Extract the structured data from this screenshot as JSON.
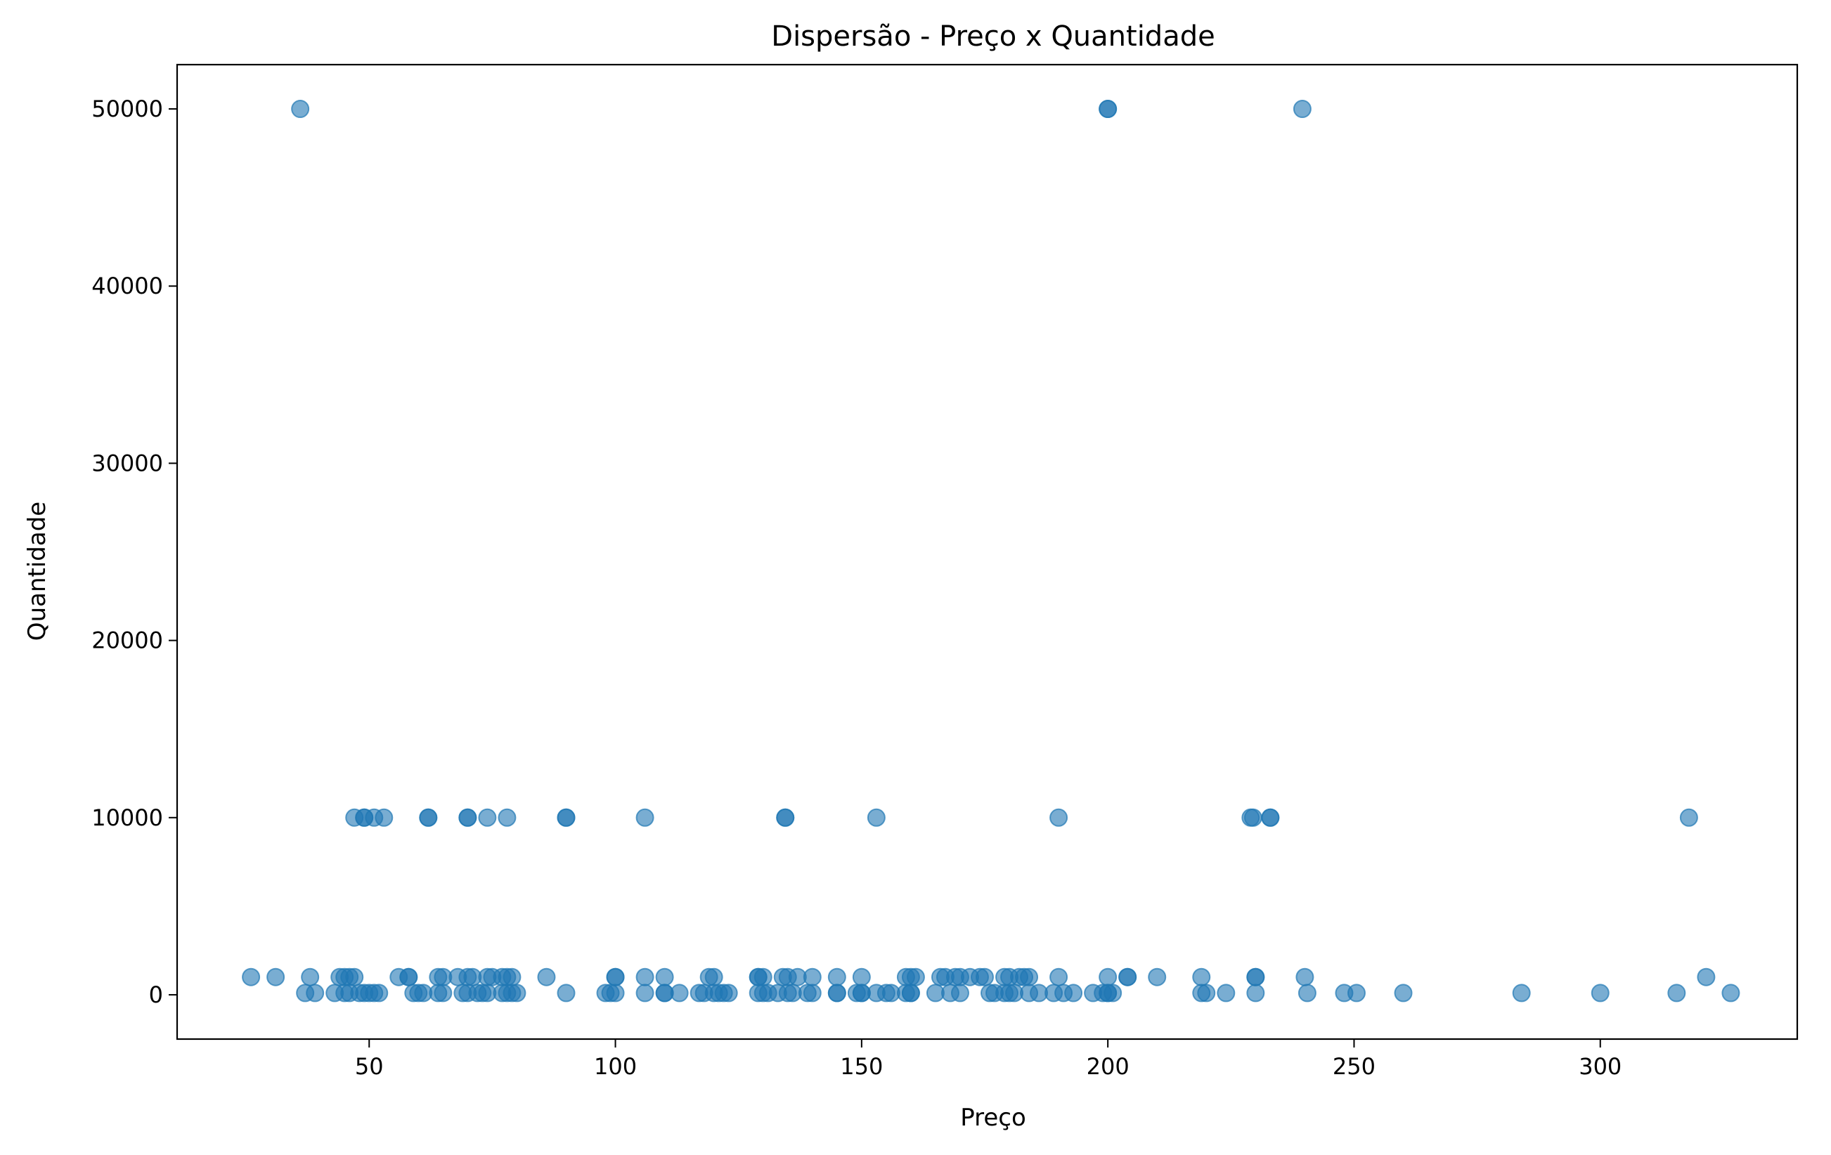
{
  "chart_data": {
    "type": "scatter",
    "title": "Dispersão - Preço x Quantidade",
    "xlabel": "Preço",
    "ylabel": "Quantidade",
    "xlim": [
      11,
      340
    ],
    "ylim": [
      -2500,
      52500
    ],
    "xticks": [
      50,
      100,
      150,
      200,
      250,
      300
    ],
    "yticks": [
      0,
      10000,
      20000,
      30000,
      40000,
      50000
    ],
    "grid": false,
    "marker_color": "#1f77b4",
    "marker_alpha": 0.6,
    "points": [
      [
        36,
        50000
      ],
      [
        200,
        50000
      ],
      [
        200,
        50000
      ],
      [
        239.5,
        50000
      ],
      [
        47,
        10000
      ],
      [
        49,
        10000
      ],
      [
        49,
        10000
      ],
      [
        51,
        10000
      ],
      [
        53,
        10000
      ],
      [
        62,
        10000
      ],
      [
        62,
        10000
      ],
      [
        70,
        10000
      ],
      [
        70,
        10000
      ],
      [
        74,
        10000
      ],
      [
        78,
        10000
      ],
      [
        90,
        10000
      ],
      [
        90,
        10000
      ],
      [
        106,
        10000
      ],
      [
        134.5,
        10000
      ],
      [
        134.5,
        10000
      ],
      [
        153,
        10000
      ],
      [
        190,
        10000
      ],
      [
        229,
        10000
      ],
      [
        229.5,
        10000
      ],
      [
        233,
        10000
      ],
      [
        233,
        10000
      ],
      [
        318,
        10000
      ],
      [
        26,
        1000
      ],
      [
        31,
        1000
      ],
      [
        38,
        1000
      ],
      [
        44,
        1000
      ],
      [
        45,
        1000
      ],
      [
        46,
        1000
      ],
      [
        47,
        1000
      ],
      [
        56,
        1000
      ],
      [
        58,
        1000
      ],
      [
        58,
        1000
      ],
      [
        64,
        1000
      ],
      [
        65,
        1000
      ],
      [
        68,
        1000
      ],
      [
        70,
        1000
      ],
      [
        71,
        1000
      ],
      [
        74,
        1000
      ],
      [
        75,
        1000
      ],
      [
        77,
        1000
      ],
      [
        78,
        1000
      ],
      [
        79,
        1000
      ],
      [
        86,
        1000
      ],
      [
        100,
        1000
      ],
      [
        100,
        1000
      ],
      [
        106,
        1000
      ],
      [
        110,
        1000
      ],
      [
        119,
        1000
      ],
      [
        120,
        1000
      ],
      [
        129,
        1000
      ],
      [
        129,
        1000
      ],
      [
        130,
        1000
      ],
      [
        134,
        1000
      ],
      [
        135,
        1000
      ],
      [
        137,
        1000
      ],
      [
        140,
        1000
      ],
      [
        145,
        1000
      ],
      [
        150,
        1000
      ],
      [
        159,
        1000
      ],
      [
        160,
        1000
      ],
      [
        161,
        1000
      ],
      [
        166,
        1000
      ],
      [
        167,
        1000
      ],
      [
        169,
        1000
      ],
      [
        170,
        1000
      ],
      [
        172,
        1000
      ],
      [
        174,
        1000
      ],
      [
        175,
        1000
      ],
      [
        179,
        1000
      ],
      [
        180,
        1000
      ],
      [
        182,
        1000
      ],
      [
        183,
        1000
      ],
      [
        184,
        1000
      ],
      [
        190,
        1000
      ],
      [
        200,
        1000
      ],
      [
        204,
        1000
      ],
      [
        204,
        1000
      ],
      [
        210,
        1000
      ],
      [
        219,
        1000
      ],
      [
        230,
        1000
      ],
      [
        230,
        1000
      ],
      [
        240,
        1000
      ],
      [
        321.5,
        1000
      ],
      [
        37,
        100
      ],
      [
        39,
        100
      ],
      [
        43,
        100
      ],
      [
        45,
        100
      ],
      [
        46,
        100
      ],
      [
        48,
        100
      ],
      [
        49,
        100
      ],
      [
        50,
        100
      ],
      [
        51,
        100
      ],
      [
        52,
        100
      ],
      [
        59,
        100
      ],
      [
        60,
        100
      ],
      [
        61,
        100
      ],
      [
        64,
        100
      ],
      [
        65,
        100
      ],
      [
        69,
        100
      ],
      [
        70,
        100
      ],
      [
        72,
        100
      ],
      [
        73,
        100
      ],
      [
        74,
        100
      ],
      [
        77,
        100
      ],
      [
        78,
        100
      ],
      [
        79,
        100
      ],
      [
        80,
        100
      ],
      [
        90,
        100
      ],
      [
        98,
        100
      ],
      [
        99,
        100
      ],
      [
        100,
        100
      ],
      [
        106,
        100
      ],
      [
        110,
        100
      ],
      [
        110,
        100
      ],
      [
        113,
        100
      ],
      [
        117,
        100
      ],
      [
        118,
        100
      ],
      [
        120,
        100
      ],
      [
        121,
        100
      ],
      [
        122,
        100
      ],
      [
        123,
        100
      ],
      [
        129,
        100
      ],
      [
        130,
        100
      ],
      [
        131,
        100
      ],
      [
        133,
        100
      ],
      [
        135,
        100
      ],
      [
        136,
        100
      ],
      [
        139,
        100
      ],
      [
        140,
        100
      ],
      [
        145,
        100
      ],
      [
        145,
        100
      ],
      [
        149,
        100
      ],
      [
        150,
        100
      ],
      [
        150,
        100
      ],
      [
        153,
        100
      ],
      [
        155,
        100
      ],
      [
        156,
        100
      ],
      [
        159,
        100
      ],
      [
        160,
        100
      ],
      [
        160,
        100
      ],
      [
        165,
        100
      ],
      [
        168,
        100
      ],
      [
        170,
        100
      ],
      [
        176,
        100
      ],
      [
        177,
        100
      ],
      [
        179,
        100
      ],
      [
        180,
        100
      ],
      [
        181,
        100
      ],
      [
        184,
        100
      ],
      [
        186,
        100
      ],
      [
        189,
        100
      ],
      [
        191,
        100
      ],
      [
        193,
        100
      ],
      [
        197,
        100
      ],
      [
        199,
        100
      ],
      [
        200,
        100
      ],
      [
        200,
        100
      ],
      [
        201,
        100
      ],
      [
        219,
        100
      ],
      [
        220,
        100
      ],
      [
        224,
        100
      ],
      [
        230,
        100
      ],
      [
        240.5,
        100
      ],
      [
        248,
        100
      ],
      [
        250.5,
        100
      ],
      [
        260,
        100
      ],
      [
        284,
        100
      ],
      [
        300,
        100
      ],
      [
        315.5,
        100
      ],
      [
        326.5,
        100
      ]
    ]
  }
}
